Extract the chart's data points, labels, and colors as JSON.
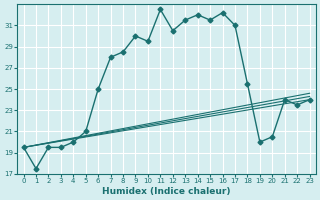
{
  "xlabel": "Humidex (Indice chaleur)",
  "bg_color": "#d6eef0",
  "grid_color": "#ffffff",
  "line_color": "#1a7070",
  "xlim": [
    -0.5,
    23.5
  ],
  "ylim": [
    17,
    33
  ],
  "yticks": [
    17,
    19,
    21,
    23,
    25,
    27,
    29,
    31
  ],
  "xticks": [
    0,
    1,
    2,
    3,
    4,
    5,
    6,
    7,
    8,
    9,
    10,
    11,
    12,
    13,
    14,
    15,
    16,
    17,
    18,
    19,
    20,
    21,
    22,
    23
  ],
  "series1_x": [
    0,
    1,
    2,
    3,
    4,
    5,
    6,
    7,
    8,
    9,
    10,
    11,
    12,
    13,
    14,
    15,
    16,
    17,
    18,
    19,
    20,
    21,
    22,
    23
  ],
  "series1_y": [
    19.5,
    17.5,
    19.5,
    19.5,
    20.0,
    21.0,
    25.0,
    28.0,
    28.5,
    30.0,
    29.5,
    32.5,
    30.5,
    31.5,
    32.0,
    31.5,
    32.2,
    31.0,
    25.5,
    20.0,
    20.5,
    24.0,
    23.5,
    24.0
  ],
  "series2_x": [
    0,
    23
  ],
  "series2_y": [
    19.5,
    24.0
  ],
  "series3_x": [
    0,
    23
  ],
  "series3_y": [
    19.5,
    24.3
  ],
  "series4_x": [
    0,
    23
  ],
  "series4_y": [
    19.5,
    24.6
  ]
}
